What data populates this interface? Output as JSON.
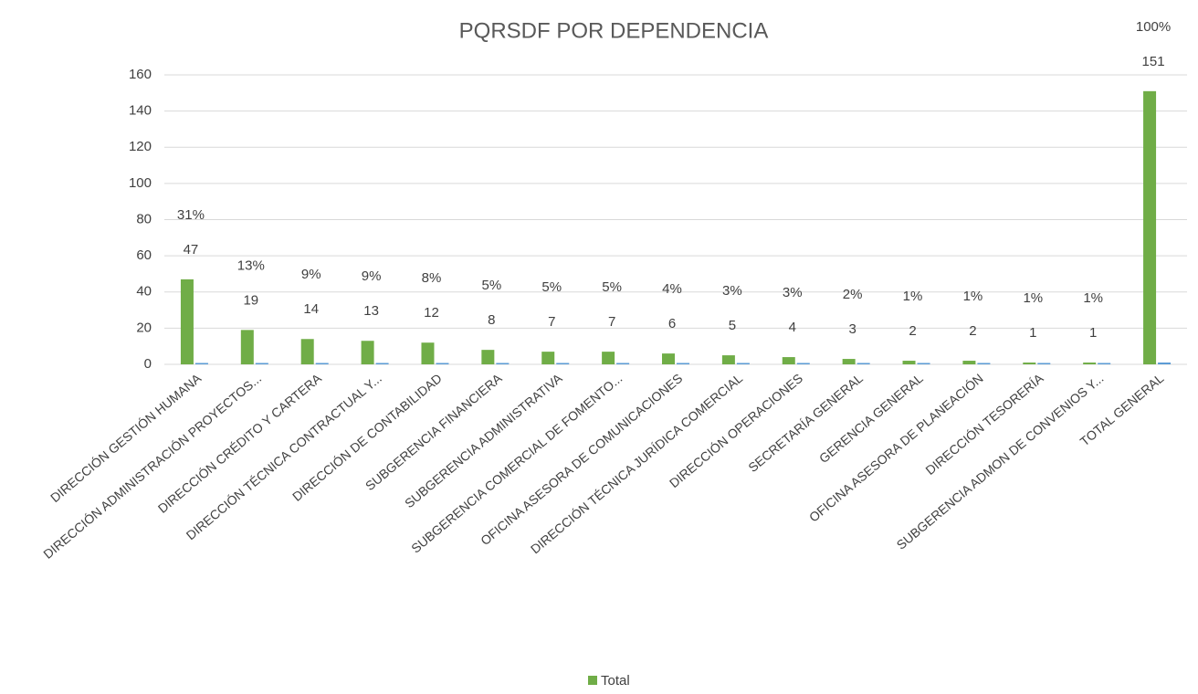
{
  "chart_data": {
    "type": "bar",
    "title": "PQRSDF POR DEPENDENCIA",
    "categories": [
      "DIRECCIÓN GESTIÓN HUMANA",
      "DIRECCIÓN ADMINISTRACIÓN PROYECTOS...",
      "DIRECCIÓN CRÉDITO Y CARTERA",
      "DIRECCIÓN TÉCNICA CONTRACTUAL Y...",
      "DIRECCIÓN DE CONTABILIDAD",
      "SUBGERENCIA FINANCIERA",
      "SUBGERENCIA ADMINISTRATIVA",
      "SUBGERENCIA COMERCIAL DE FOMENTO...",
      "OFICINA ASESORA DE COMUNICACIONES",
      "DIRECCIÓN TÉCNICA JURÍDICA COMERCIAL",
      "DIRECCIÓN OPERACIONES",
      "SECRETARÍA GENERAL",
      "GERENCIA GENERAL",
      "OFICINA ASESORA DE PLANEACIÓN",
      "DIRECCIÓN TESORERÍA",
      "SUBGERENCIA ADMON DE CONVENIOS Y...",
      "TOTAL GENERAL"
    ],
    "series": [
      {
        "name": "Total",
        "color": "#70ad47",
        "values": [
          47,
          19,
          14,
          13,
          12,
          8,
          7,
          7,
          6,
          5,
          4,
          3,
          2,
          2,
          1,
          1,
          151
        ]
      },
      {
        "color": "#5b9bd5",
        "values": [
          0.31,
          0.13,
          0.09,
          0.09,
          0.08,
          0.05,
          0.05,
          0.05,
          0.04,
          0.03,
          0.03,
          0.02,
          0.01,
          0.01,
          0.01,
          0.01,
          1
        ],
        "value_labels": [
          "31%",
          "13%",
          "9%",
          "9%",
          "8%",
          "5%",
          "5%",
          "5%",
          "4%",
          "3%",
          "3%",
          "2%",
          "1%",
          "1%",
          "1%",
          "1%",
          "100%"
        ]
      }
    ],
    "ylim": [
      0,
      160
    ],
    "yticks": [
      0,
      20,
      40,
      60,
      80,
      100,
      120,
      140,
      160
    ],
    "grid": true,
    "legend": "bottom"
  }
}
